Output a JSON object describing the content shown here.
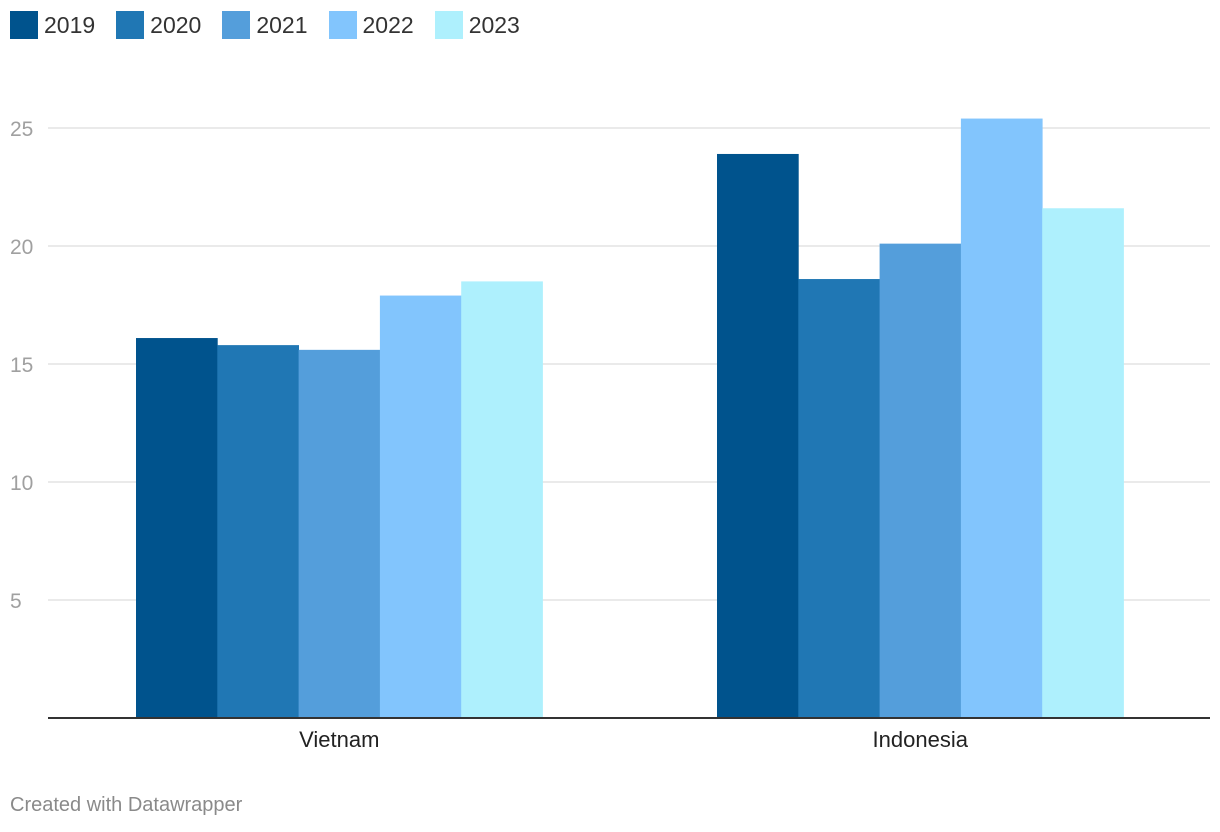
{
  "chart_data": {
    "type": "bar",
    "categories": [
      "Vietnam",
      "Indonesia"
    ],
    "series": [
      {
        "name": "2019",
        "color": "#00538d",
        "values": [
          16.1,
          23.9
        ]
      },
      {
        "name": "2020",
        "color": "#2077b4",
        "values": [
          15.8,
          18.6
        ]
      },
      {
        "name": "2021",
        "color": "#549edb",
        "values": [
          15.6,
          20.1
        ]
      },
      {
        "name": "2022",
        "color": "#82c5fd",
        "values": [
          17.9,
          25.4
        ]
      },
      {
        "name": "2023",
        "color": "#aef0fd",
        "values": [
          18.5,
          21.6
        ]
      }
    ],
    "yticks": [
      "5",
      "10",
      "15",
      "20",
      "25"
    ],
    "ylim": [
      0,
      26
    ],
    "grid": true,
    "legend_position": "top-left",
    "title": "",
    "xlabel": "",
    "ylabel": ""
  },
  "footer": {
    "credit": "Created with Datawrapper"
  }
}
